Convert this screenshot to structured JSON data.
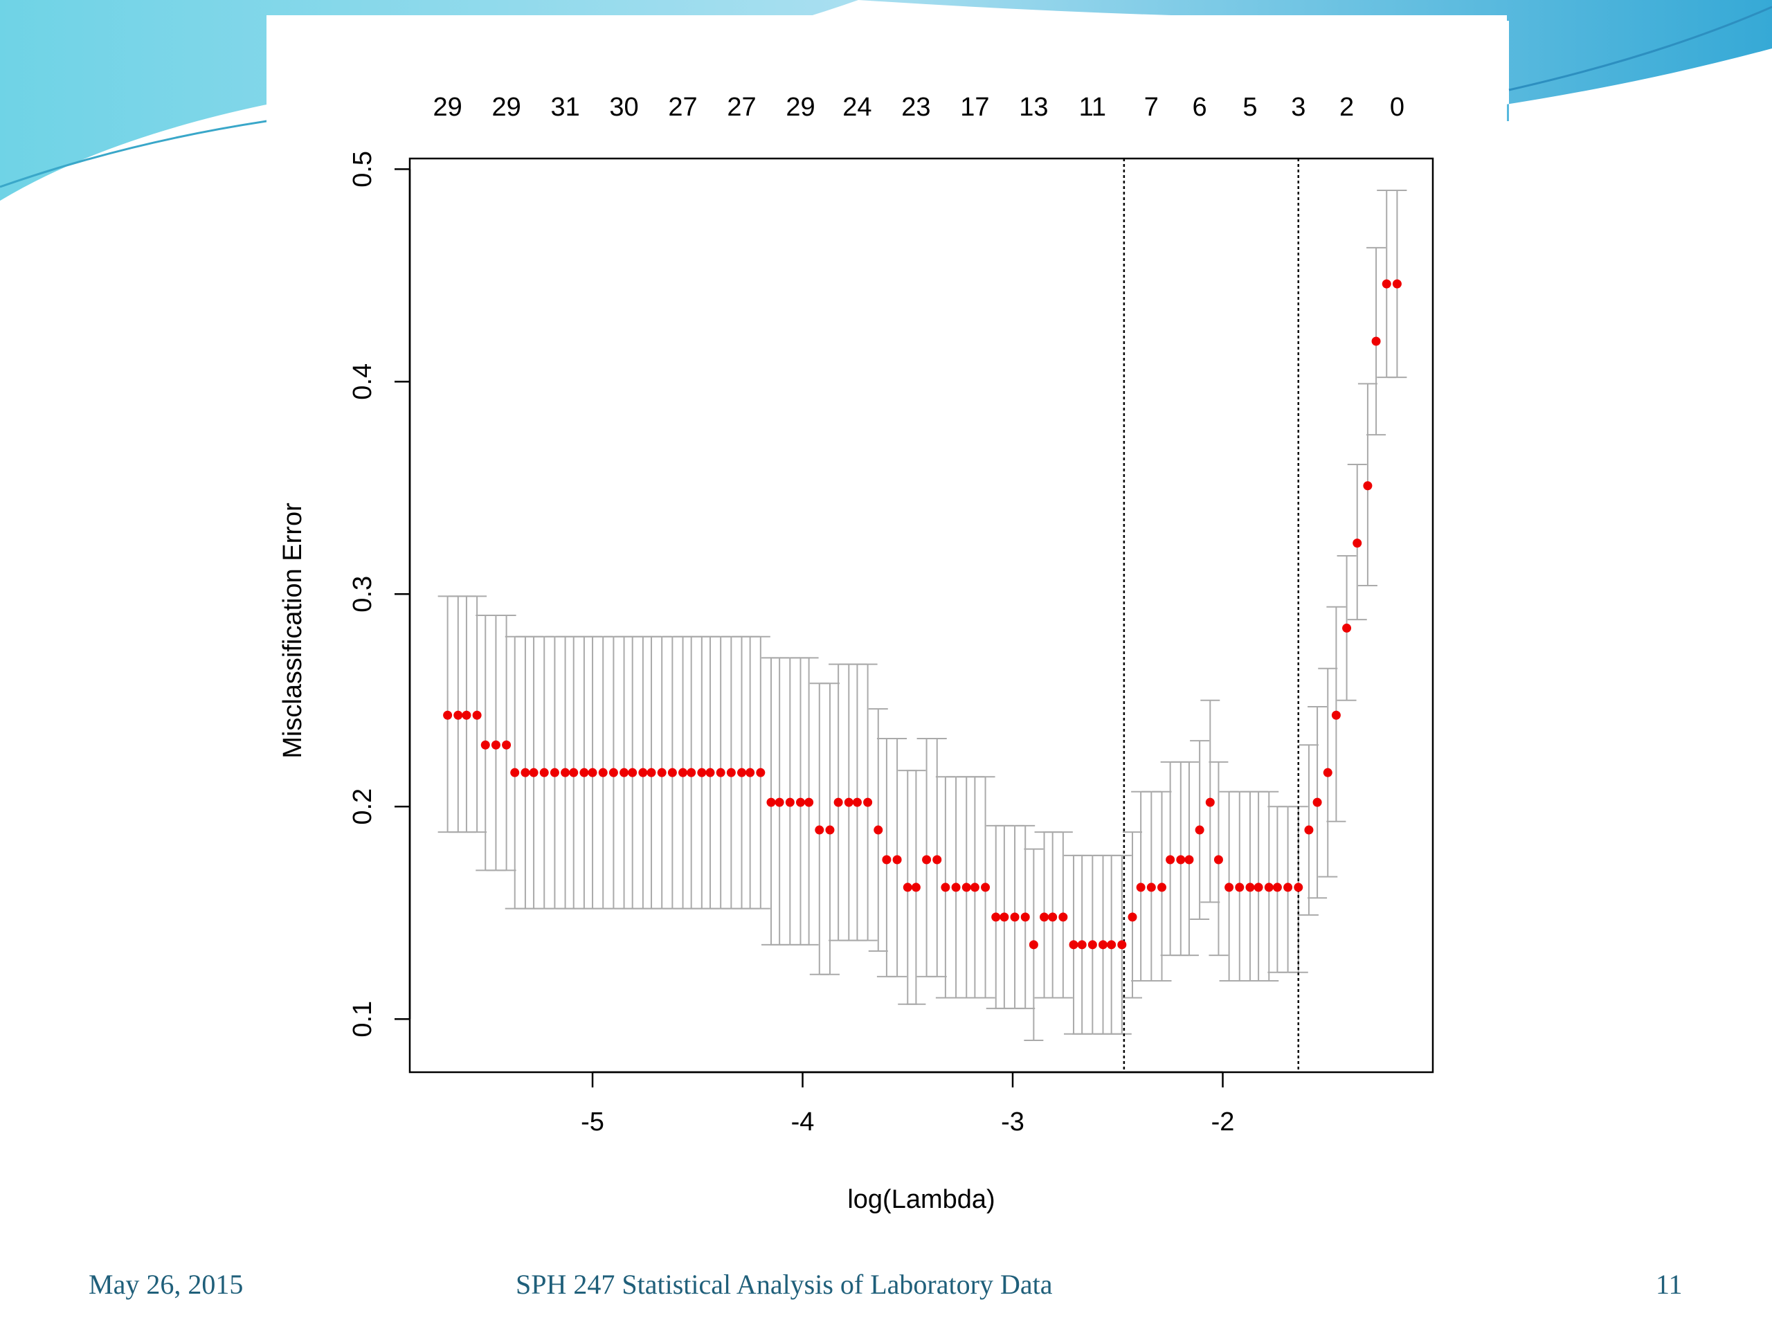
{
  "slide": {
    "date": "May 26, 2015",
    "course": "SPH 247 Statistical Analysis of Laboratory Data",
    "page": "11"
  },
  "colors": {
    "point": "#ee0000",
    "errorbar": "#aaaaaa",
    "accent_teal": "#1f5f7a",
    "slide_wave": "#4fc4dc"
  },
  "chart_data": {
    "type": "scatter",
    "title": "",
    "xlabel": "log(Lambda)",
    "ylabel": "Misclassification Error",
    "xlim": [
      -5.87,
      -1.0
    ],
    "ylim": [
      0.075,
      0.505
    ],
    "x_ticks": [
      -5,
      -4,
      -3,
      -2
    ],
    "y_ticks": [
      0.1,
      0.2,
      0.3,
      0.4,
      0.5
    ],
    "top_axis": {
      "x": [
        -5.69,
        -5.41,
        -5.13,
        -4.85,
        -4.57,
        -4.29,
        -4.01,
        -3.74,
        -3.46,
        -3.18,
        -2.9,
        -2.62,
        -2.34,
        -2.11,
        -1.87,
        -1.64,
        -1.41,
        -1.17
      ],
      "labels": [
        "29",
        "29",
        "31",
        "30",
        "27",
        "27",
        "29",
        "24",
        "23",
        "17",
        "13",
        "11",
        "7",
        "6",
        "5",
        "3",
        "2",
        "0"
      ]
    },
    "vlines": [
      -2.47,
      -1.64
    ],
    "series": [
      {
        "x": [
          -5.69,
          -5.64,
          -5.6,
          -5.55,
          -5.51,
          -5.46,
          -5.41,
          -5.37,
          -5.32,
          -5.28,
          -5.23,
          -5.18,
          -5.13,
          -5.09,
          -5.04,
          -5.0,
          -4.95,
          -4.9,
          -4.85,
          -4.81,
          -4.76,
          -4.72,
          -4.67,
          -4.62,
          -4.57,
          -4.53,
          -4.48,
          -4.44,
          -4.39,
          -4.34,
          -4.29,
          -4.25,
          -4.2,
          -4.15,
          -4.11,
          -4.06,
          -4.01,
          -3.97,
          -3.92,
          -3.87,
          -3.83,
          -3.78,
          -3.74,
          -3.69,
          -3.64,
          -3.6,
          -3.55,
          -3.5,
          -3.46,
          -3.41,
          -3.36,
          -3.32,
          -3.27,
          -3.22,
          -3.18,
          -3.13,
          -3.08,
          -3.04,
          -2.99,
          -2.94,
          -2.9,
          -2.85,
          -2.81,
          -2.76,
          -2.71,
          -2.67,
          -2.62,
          -2.57,
          -2.53,
          -2.48,
          -2.43,
          -2.39,
          -2.34,
          -2.29,
          -2.25,
          -2.2,
          -2.16,
          -2.11,
          -2.06,
          -2.02,
          -1.97,
          -1.92,
          -1.87,
          -1.83,
          -1.78,
          -1.74,
          -1.69,
          -1.64,
          -1.59,
          -1.55,
          -1.5,
          -1.46,
          -1.41,
          -1.36,
          -1.31,
          -1.27,
          -1.22,
          -1.17
        ],
        "y": [
          0.243,
          0.243,
          0.243,
          0.243,
          0.229,
          0.229,
          0.229,
          0.216,
          0.216,
          0.216,
          0.216,
          0.216,
          0.216,
          0.216,
          0.216,
          0.216,
          0.216,
          0.216,
          0.216,
          0.216,
          0.216,
          0.216,
          0.216,
          0.216,
          0.216,
          0.216,
          0.216,
          0.216,
          0.216,
          0.216,
          0.216,
          0.216,
          0.216,
          0.202,
          0.202,
          0.202,
          0.202,
          0.202,
          0.189,
          0.189,
          0.202,
          0.202,
          0.202,
          0.202,
          0.189,
          0.175,
          0.175,
          0.162,
          0.162,
          0.175,
          0.175,
          0.162,
          0.162,
          0.162,
          0.162,
          0.162,
          0.148,
          0.148,
          0.148,
          0.148,
          0.135,
          0.148,
          0.148,
          0.148,
          0.135,
          0.135,
          0.135,
          0.135,
          0.135,
          0.135,
          0.148,
          0.162,
          0.162,
          0.162,
          0.175,
          0.175,
          0.175,
          0.189,
          0.202,
          0.175,
          0.162,
          0.162,
          0.162,
          0.162,
          0.162,
          0.162,
          0.162,
          0.162,
          0.189,
          0.202,
          0.216,
          0.243,
          0.284,
          0.324,
          0.351,
          0.419,
          0.446,
          0.446
        ],
        "lower": [
          0.188,
          0.188,
          0.188,
          0.188,
          0.17,
          0.17,
          0.17,
          0.152,
          0.152,
          0.152,
          0.152,
          0.152,
          0.152,
          0.152,
          0.152,
          0.152,
          0.152,
          0.152,
          0.152,
          0.152,
          0.152,
          0.152,
          0.152,
          0.152,
          0.152,
          0.152,
          0.152,
          0.152,
          0.152,
          0.152,
          0.152,
          0.152,
          0.152,
          0.135,
          0.135,
          0.135,
          0.135,
          0.135,
          0.121,
          0.121,
          0.137,
          0.137,
          0.137,
          0.137,
          0.132,
          0.12,
          0.12,
          0.107,
          0.107,
          0.12,
          0.12,
          0.11,
          0.11,
          0.11,
          0.11,
          0.11,
          0.105,
          0.105,
          0.105,
          0.105,
          0.09,
          0.11,
          0.11,
          0.11,
          0.093,
          0.093,
          0.093,
          0.093,
          0.093,
          0.093,
          0.11,
          0.118,
          0.118,
          0.118,
          0.13,
          0.13,
          0.13,
          0.147,
          0.155,
          0.13,
          0.118,
          0.118,
          0.118,
          0.118,
          0.118,
          0.122,
          0.122,
          0.122,
          0.149,
          0.157,
          0.167,
          0.193,
          0.25,
          0.288,
          0.304,
          0.375,
          0.402,
          0.402
        ],
        "upper": [
          0.299,
          0.299,
          0.299,
          0.299,
          0.29,
          0.29,
          0.29,
          0.28,
          0.28,
          0.28,
          0.28,
          0.28,
          0.28,
          0.28,
          0.28,
          0.28,
          0.28,
          0.28,
          0.28,
          0.28,
          0.28,
          0.28,
          0.28,
          0.28,
          0.28,
          0.28,
          0.28,
          0.28,
          0.28,
          0.28,
          0.28,
          0.28,
          0.28,
          0.27,
          0.27,
          0.27,
          0.27,
          0.27,
          0.258,
          0.258,
          0.267,
          0.267,
          0.267,
          0.267,
          0.246,
          0.232,
          0.232,
          0.217,
          0.217,
          0.232,
          0.232,
          0.214,
          0.214,
          0.214,
          0.214,
          0.214,
          0.191,
          0.191,
          0.191,
          0.191,
          0.18,
          0.188,
          0.188,
          0.188,
          0.177,
          0.177,
          0.177,
          0.177,
          0.177,
          0.177,
          0.188,
          0.207,
          0.207,
          0.207,
          0.221,
          0.221,
          0.221,
          0.231,
          0.25,
          0.221,
          0.207,
          0.207,
          0.207,
          0.207,
          0.207,
          0.2,
          0.2,
          0.2,
          0.229,
          0.247,
          0.265,
          0.294,
          0.318,
          0.361,
          0.399,
          0.463,
          0.49,
          0.49
        ]
      }
    ]
  }
}
